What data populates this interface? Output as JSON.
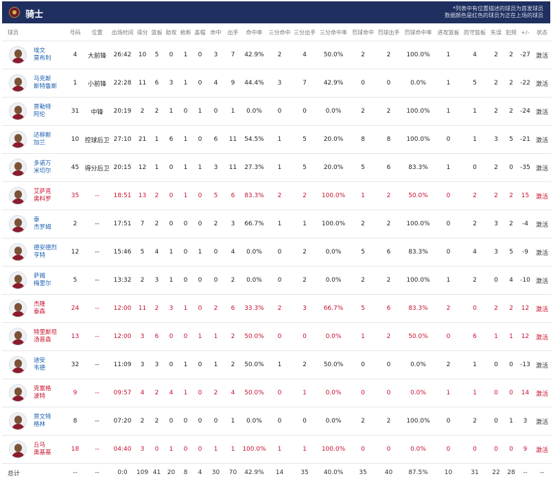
{
  "team": {
    "name": "骑士",
    "logo": "cavaliers-logo-icon"
  },
  "notes": [
    "*列表中有位置描述的球员为首发球员",
    "数据颜色是红色的球员为正在上场的球员"
  ],
  "columns": [
    "球员",
    "号码",
    "位置",
    "出场时间",
    "得分",
    "篮板",
    "助攻",
    "抢断",
    "盖帽",
    "命中",
    "出手",
    "命中率",
    "三分命中",
    "三分出手",
    "三分命中率",
    "罚球命中",
    "罚球出手",
    "罚球命中率",
    "进攻篮板",
    "防守篮板",
    "失误",
    "犯规",
    "+/-",
    "状态"
  ],
  "players": [
    {
      "name1": "埃文",
      "name2": "莫布利",
      "num": "4",
      "pos": "大前锋",
      "min": "26:42",
      "pts": "10",
      "reb": "5",
      "ast": "0",
      "stl": "1",
      "blk": "0",
      "fgm": "3",
      "fga": "7",
      "fgp": "42.9%",
      "tpm": "2",
      "tpa": "4",
      "tpp": "50.0%",
      "ftm": "2",
      "fta": "2",
      "ftp": "100.0%",
      "oreb": "1",
      "dreb": "4",
      "tov": "2",
      "pf": "2",
      "pm": "-27",
      "status": "激活",
      "on_court": false
    },
    {
      "name1": "马克斯",
      "name2": "斯特鲁斯",
      "num": "1",
      "pos": "小前锋",
      "min": "22:28",
      "pts": "11",
      "reb": "6",
      "ast": "3",
      "stl": "1",
      "blk": "0",
      "fgm": "4",
      "fga": "9",
      "fgp": "44.4%",
      "tpm": "3",
      "tpa": "7",
      "tpp": "42.9%",
      "ftm": "0",
      "fta": "0",
      "ftp": "0.0%",
      "oreb": "1",
      "dreb": "5",
      "tov": "2",
      "pf": "2",
      "pm": "-22",
      "status": "激活",
      "on_court": false
    },
    {
      "name1": "贾勒特",
      "name2": "阿伦",
      "num": "31",
      "pos": "中锋",
      "min": "20:19",
      "pts": "2",
      "reb": "2",
      "ast": "1",
      "stl": "0",
      "blk": "1",
      "fgm": "0",
      "fga": "1",
      "fgp": "0.0%",
      "tpm": "0",
      "tpa": "0",
      "tpp": "0.0%",
      "ftm": "2",
      "fta": "2",
      "ftp": "100.0%",
      "oreb": "1",
      "dreb": "1",
      "tov": "2",
      "pf": "2",
      "pm": "-24",
      "status": "激活",
      "on_court": false
    },
    {
      "name1": "达柳斯",
      "name2": "加兰",
      "num": "10",
      "pos": "控球后卫",
      "min": "27:10",
      "pts": "21",
      "reb": "1",
      "ast": "6",
      "stl": "1",
      "blk": "0",
      "fgm": "6",
      "fga": "11",
      "fgp": "54.5%",
      "tpm": "1",
      "tpa": "5",
      "tpp": "20.0%",
      "ftm": "8",
      "fta": "8",
      "ftp": "100.0%",
      "oreb": "0",
      "dreb": "1",
      "tov": "3",
      "pf": "5",
      "pm": "-21",
      "status": "激活",
      "on_court": false
    },
    {
      "name1": "多诺万",
      "name2": "米切尔",
      "num": "45",
      "pos": "得分后卫",
      "min": "20:15",
      "pts": "12",
      "reb": "1",
      "ast": "0",
      "stl": "1",
      "blk": "1",
      "fgm": "3",
      "fga": "11",
      "fgp": "27.3%",
      "tpm": "1",
      "tpa": "5",
      "tpp": "20.0%",
      "ftm": "5",
      "fta": "6",
      "ftp": "83.3%",
      "oreb": "1",
      "dreb": "0",
      "tov": "2",
      "pf": "0",
      "pm": "-35",
      "status": "激活",
      "on_court": false
    },
    {
      "name1": "艾萨克",
      "name2": "奥科罗",
      "num": "35",
      "pos": "--",
      "min": "18:51",
      "pts": "13",
      "reb": "2",
      "ast": "0",
      "stl": "1",
      "blk": "0",
      "fgm": "5",
      "fga": "6",
      "fgp": "83.3%",
      "tpm": "2",
      "tpa": "2",
      "tpp": "100.0%",
      "ftm": "1",
      "fta": "2",
      "ftp": "50.0%",
      "oreb": "0",
      "dreb": "2",
      "tov": "2",
      "pf": "2",
      "pm": "15",
      "status": "激活",
      "on_court": true
    },
    {
      "name1": "泰",
      "name2": "杰罗姆",
      "num": "2",
      "pos": "--",
      "min": "17:51",
      "pts": "7",
      "reb": "2",
      "ast": "0",
      "stl": "0",
      "blk": "0",
      "fgm": "2",
      "fga": "3",
      "fgp": "66.7%",
      "tpm": "1",
      "tpa": "1",
      "tpp": "100.0%",
      "ftm": "2",
      "fta": "2",
      "ftp": "100.0%",
      "oreb": "0",
      "dreb": "2",
      "tov": "3",
      "pf": "2",
      "pm": "-4",
      "status": "激活",
      "on_court": false
    },
    {
      "name1": "德安德烈",
      "name2": "亨特",
      "num": "12",
      "pos": "--",
      "min": "15:46",
      "pts": "5",
      "reb": "4",
      "ast": "1",
      "stl": "0",
      "blk": "1",
      "fgm": "0",
      "fga": "4",
      "fgp": "0.0%",
      "tpm": "0",
      "tpa": "2",
      "tpp": "0.0%",
      "ftm": "5",
      "fta": "6",
      "ftp": "83.3%",
      "oreb": "0",
      "dreb": "4",
      "tov": "3",
      "pf": "5",
      "pm": "-9",
      "status": "激活",
      "on_court": false
    },
    {
      "name1": "萨姆",
      "name2": "梅里尔",
      "num": "5",
      "pos": "--",
      "min": "13:32",
      "pts": "2",
      "reb": "3",
      "ast": "1",
      "stl": "0",
      "blk": "0",
      "fgm": "0",
      "fga": "2",
      "fgp": "0.0%",
      "tpm": "0",
      "tpa": "2",
      "tpp": "0.0%",
      "ftm": "2",
      "fta": "2",
      "ftp": "100.0%",
      "oreb": "1",
      "dreb": "2",
      "tov": "0",
      "pf": "4",
      "pm": "-10",
      "status": "激活",
      "on_court": false
    },
    {
      "name1": "杰隆",
      "name2": "泰森",
      "num": "24",
      "pos": "--",
      "min": "12:00",
      "pts": "11",
      "reb": "2",
      "ast": "3",
      "stl": "1",
      "blk": "0",
      "fgm": "2",
      "fga": "6",
      "fgp": "33.3%",
      "tpm": "2",
      "tpa": "3",
      "tpp": "66.7%",
      "ftm": "5",
      "fta": "6",
      "ftp": "83.3%",
      "oreb": "2",
      "dreb": "0",
      "tov": "2",
      "pf": "2",
      "pm": "12",
      "status": "激活",
      "on_court": true
    },
    {
      "name1": "特里斯坦",
      "name2": "汤普森",
      "num": "13",
      "pos": "--",
      "min": "12:00",
      "pts": "3",
      "reb": "6",
      "ast": "0",
      "stl": "0",
      "blk": "1",
      "fgm": "1",
      "fga": "2",
      "fgp": "50.0%",
      "tpm": "0",
      "tpa": "0",
      "tpp": "0.0%",
      "ftm": "1",
      "fta": "2",
      "ftp": "50.0%",
      "oreb": "0",
      "dreb": "6",
      "tov": "1",
      "pf": "1",
      "pm": "12",
      "status": "激活",
      "on_court": true
    },
    {
      "name1": "迪安",
      "name2": "韦德",
      "num": "32",
      "pos": "--",
      "min": "11:09",
      "pts": "3",
      "reb": "3",
      "ast": "0",
      "stl": "1",
      "blk": "0",
      "fgm": "1",
      "fga": "2",
      "fgp": "50.0%",
      "tpm": "1",
      "tpa": "2",
      "tpp": "50.0%",
      "ftm": "0",
      "fta": "0",
      "ftp": "0.0%",
      "oreb": "2",
      "dreb": "1",
      "tov": "0",
      "pf": "0",
      "pm": "-13",
      "status": "激活",
      "on_court": false
    },
    {
      "name1": "克雷格",
      "name2": "波特",
      "num": "9",
      "pos": "--",
      "min": "09:57",
      "pts": "4",
      "reb": "2",
      "ast": "4",
      "stl": "1",
      "blk": "0",
      "fgm": "2",
      "fga": "4",
      "fgp": "50.0%",
      "tpm": "0",
      "tpa": "1",
      "tpp": "0.0%",
      "ftm": "0",
      "fta": "0",
      "ftp": "0.0%",
      "oreb": "1",
      "dreb": "1",
      "tov": "0",
      "pf": "0",
      "pm": "14",
      "status": "激活",
      "on_court": true
    },
    {
      "name1": "贾文特",
      "name2": "格林",
      "num": "8",
      "pos": "--",
      "min": "07:20",
      "pts": "2",
      "reb": "2",
      "ast": "0",
      "stl": "0",
      "blk": "0",
      "fgm": "0",
      "fga": "1",
      "fgp": "0.0%",
      "tpm": "0",
      "tpa": "0",
      "tpp": "0.0%",
      "ftm": "2",
      "fta": "2",
      "ftp": "100.0%",
      "oreb": "0",
      "dreb": "2",
      "tov": "0",
      "pf": "1",
      "pm": "3",
      "status": "激活",
      "on_court": false
    },
    {
      "name1": "丘马",
      "name2": "奥基基",
      "num": "18",
      "pos": "--",
      "min": "04:40",
      "pts": "3",
      "reb": "0",
      "ast": "1",
      "stl": "0",
      "blk": "0",
      "fgm": "1",
      "fga": "1",
      "fgp": "100.0%",
      "tpm": "1",
      "tpa": "1",
      "tpp": "100.0%",
      "ftm": "0",
      "fta": "0",
      "ftp": "0.0%",
      "oreb": "0",
      "dreb": "0",
      "tov": "0",
      "pf": "0",
      "pm": "9",
      "status": "激活",
      "on_court": true
    }
  ],
  "totals": {
    "label": "总计",
    "num": "--",
    "pos": "--",
    "min": "0:0",
    "pts": "109",
    "reb": "41",
    "ast": "20",
    "stl": "8",
    "blk": "4",
    "fgm": "30",
    "fga": "70",
    "fgp": "42.9%",
    "tpm": "14",
    "tpa": "35",
    "tpp": "40.0%",
    "ftm": "35",
    "fta": "40",
    "ftp": "87.5%",
    "oreb": "10",
    "dreb": "31",
    "tov": "22",
    "pf": "28",
    "pm": "--",
    "status": "--"
  },
  "colors": {
    "header_bg": "#1e2f60",
    "name_link": "#1b5fb2",
    "on_court_red": "#c8102e"
  }
}
